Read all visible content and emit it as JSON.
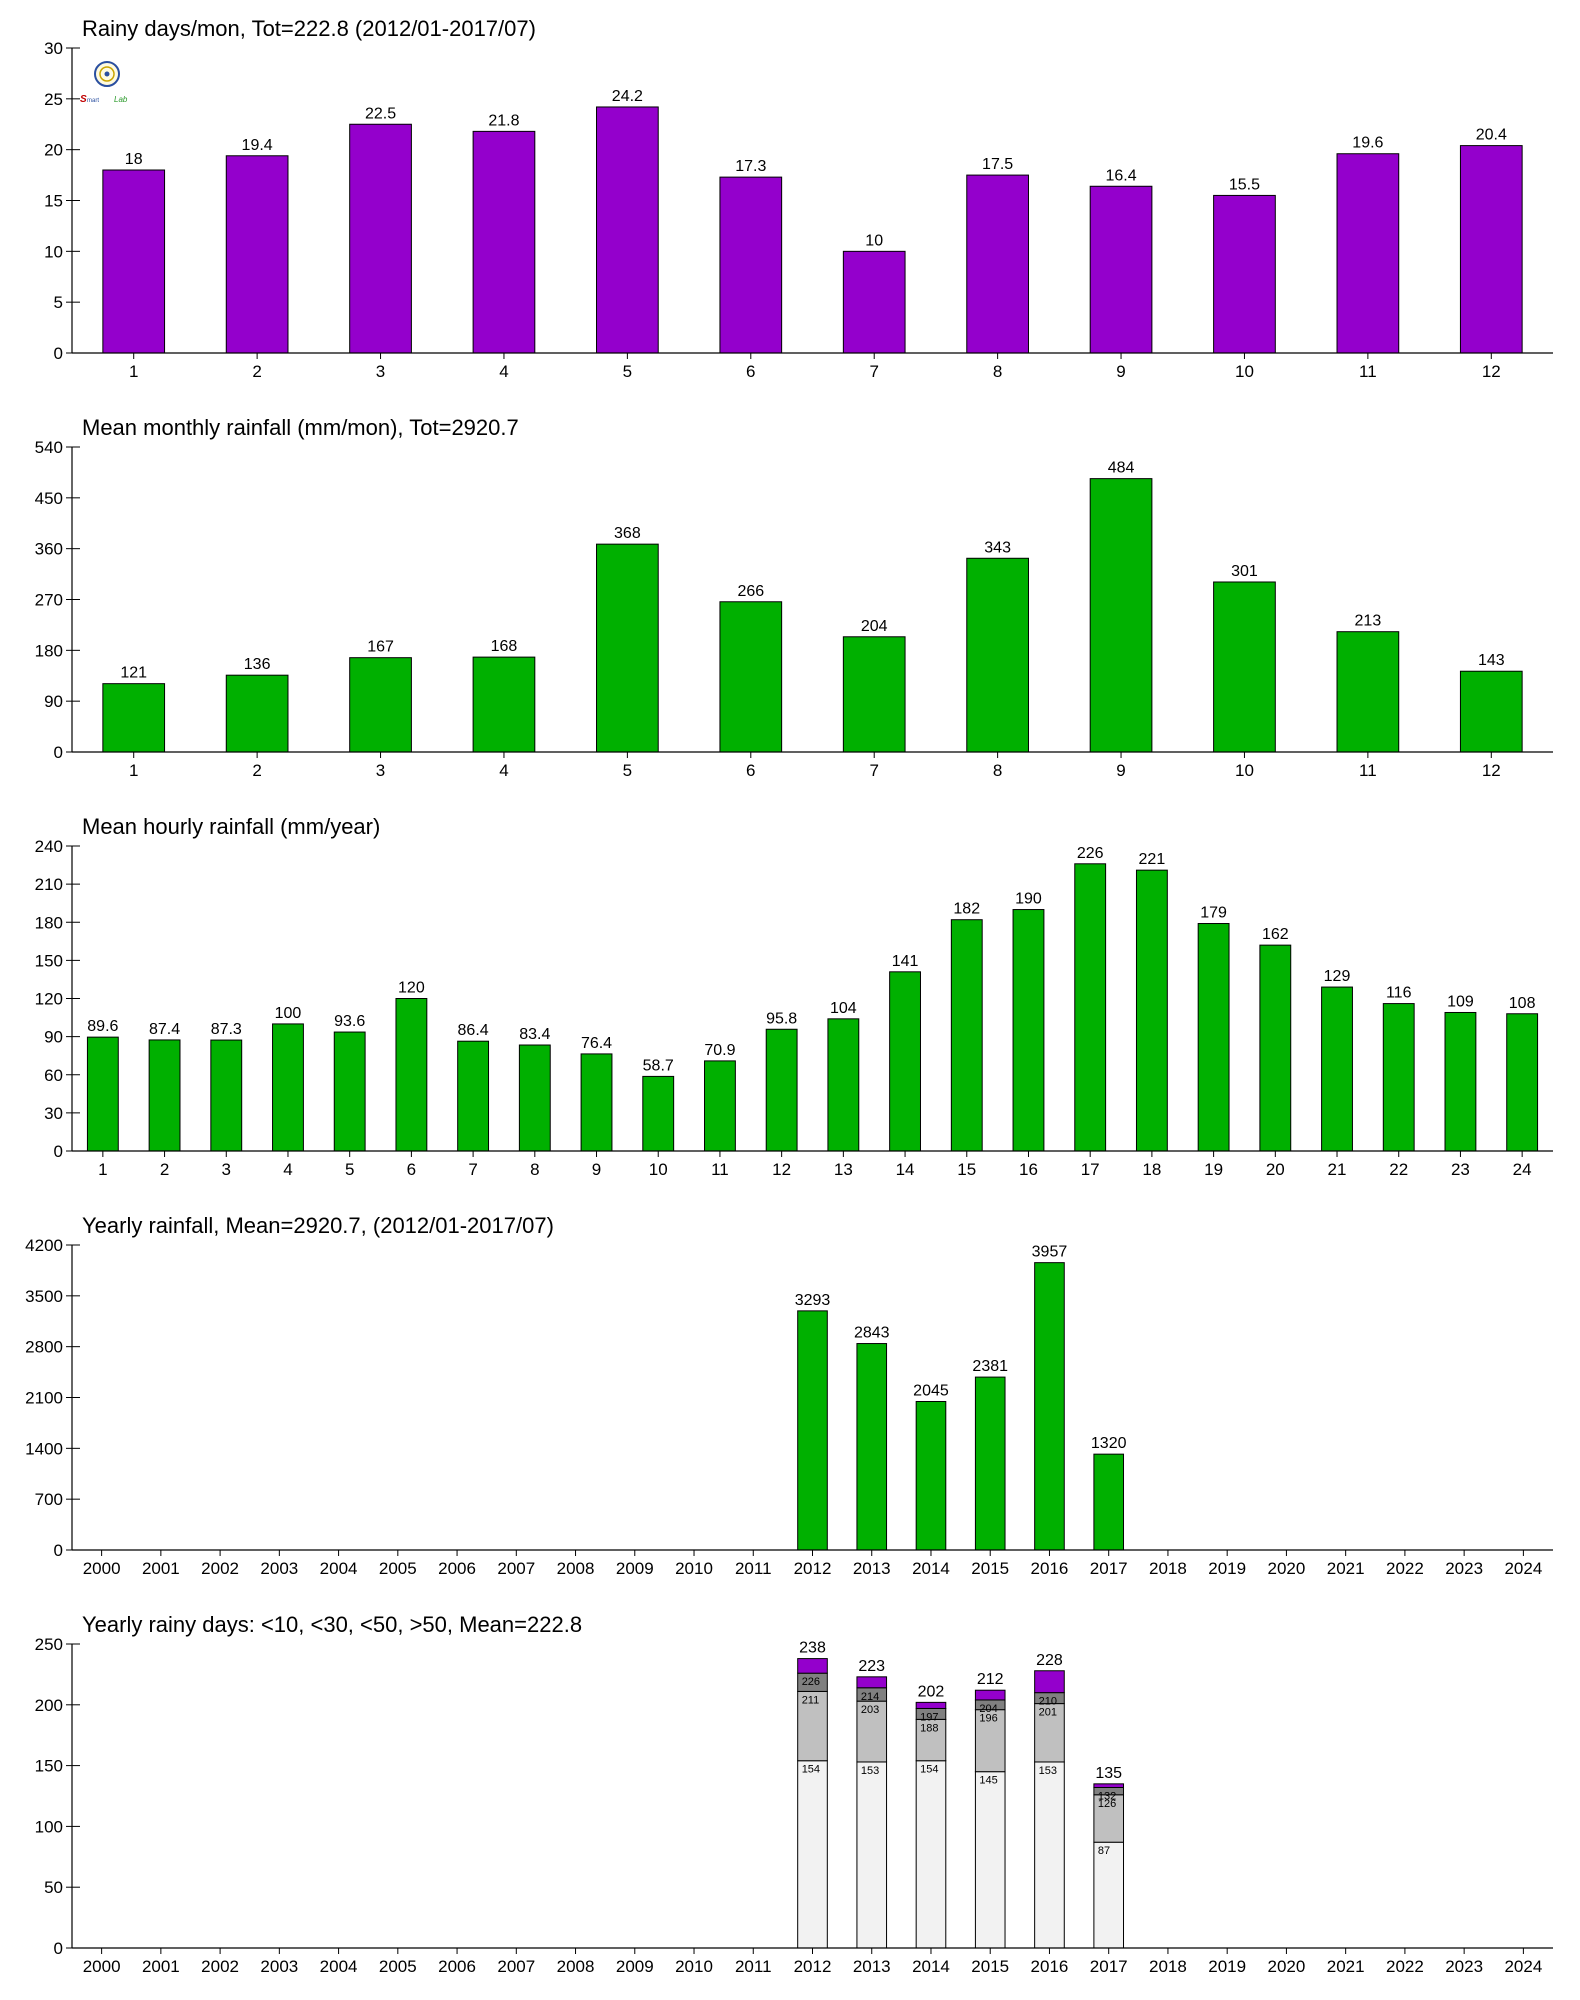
{
  "colors": {
    "purple": "#9400cc",
    "green": "#00b000",
    "gray": "#c0c0c0",
    "darkgray": "#808080",
    "lightgray": "#f2f2f2",
    "axis": "#000000"
  },
  "logo": {
    "text": "Smart Lab"
  },
  "chart_data": [
    {
      "type": "bar",
      "title": "Rainy days/mon, Tot=222.8 (2012/01-2017/07)",
      "categories": [
        "1",
        "2",
        "3",
        "4",
        "5",
        "6",
        "7",
        "8",
        "9",
        "10",
        "11",
        "12"
      ],
      "values": [
        18,
        19.4,
        22.5,
        21.8,
        24.2,
        17.3,
        10,
        17.5,
        16.4,
        15.5,
        19.6,
        20.4
      ],
      "labels": [
        "18",
        "19.4",
        "22.5",
        "21.8",
        "24.2",
        "17.3",
        "10",
        "17.5",
        "16.4",
        "15.5",
        "19.6",
        "20.4"
      ],
      "ylim": [
        0,
        30
      ],
      "yticks": [
        0,
        5,
        10,
        15,
        20,
        25,
        30
      ],
      "color": "#9400cc",
      "xlabel": "",
      "ylabel": "",
      "grid": false
    },
    {
      "type": "bar",
      "title": "Mean monthly rainfall (mm/mon), Tot=2920.7",
      "categories": [
        "1",
        "2",
        "3",
        "4",
        "5",
        "6",
        "7",
        "8",
        "9",
        "10",
        "11",
        "12"
      ],
      "values": [
        121,
        136,
        167,
        168,
        368,
        266,
        204,
        343,
        484,
        301,
        213,
        143
      ],
      "labels": [
        "121",
        "136",
        "167",
        "168",
        "368",
        "266",
        "204",
        "343",
        "484",
        "301",
        "213",
        "143"
      ],
      "ylim": [
        0,
        540
      ],
      "yticks": [
        0,
        90,
        180,
        270,
        360,
        450,
        540
      ],
      "color": "#00b000",
      "xlabel": "",
      "ylabel": "",
      "grid": false
    },
    {
      "type": "bar",
      "title": "Mean hourly rainfall (mm/year)",
      "categories": [
        "1",
        "2",
        "3",
        "4",
        "5",
        "6",
        "7",
        "8",
        "9",
        "10",
        "11",
        "12",
        "13",
        "14",
        "15",
        "16",
        "17",
        "18",
        "19",
        "20",
        "21",
        "22",
        "23",
        "24"
      ],
      "values": [
        89.6,
        87.4,
        87.3,
        100,
        93.6,
        120,
        86.4,
        83.4,
        76.4,
        58.7,
        70.9,
        95.8,
        104,
        141,
        182,
        190,
        226,
        221,
        179,
        162,
        129,
        116,
        109,
        108
      ],
      "labels": [
        "89.6",
        "87.4",
        "87.3",
        "100",
        "93.6",
        "120",
        "86.4",
        "83.4",
        "76.4",
        "58.7",
        "70.9",
        "95.8",
        "104",
        "141",
        "182",
        "190",
        "226",
        "221",
        "179",
        "162",
        "129",
        "116",
        "109",
        "108"
      ],
      "ylim": [
        0,
        240
      ],
      "yticks": [
        0,
        30,
        60,
        90,
        120,
        150,
        180,
        210,
        240
      ],
      "color": "#00b000",
      "xlabel": "",
      "ylabel": "",
      "grid": false
    },
    {
      "type": "bar",
      "title": "Yearly rainfall, Mean=2920.7, (2012/01-2017/07)",
      "categories": [
        "2000",
        "2001",
        "2002",
        "2003",
        "2004",
        "2005",
        "2006",
        "2007",
        "2008",
        "2009",
        "2010",
        "2011",
        "2012",
        "2013",
        "2014",
        "2015",
        "2016",
        "2017",
        "2018",
        "2019",
        "2020",
        "2021",
        "2022",
        "2023",
        "2024"
      ],
      "values": [
        null,
        null,
        null,
        null,
        null,
        null,
        null,
        null,
        null,
        null,
        null,
        null,
        3293,
        2843,
        2045,
        2381,
        3957,
        1320,
        null,
        null,
        null,
        null,
        null,
        null,
        null
      ],
      "labels": [
        "",
        "",
        "",
        "",
        "",
        "",
        "",
        "",
        "",
        "",
        "",
        "",
        "3293",
        "2843",
        "2045",
        "2381",
        "3957",
        "1320",
        "",
        "",
        "",
        "",
        "",
        "",
        ""
      ],
      "ylim": [
        0,
        4200
      ],
      "yticks": [
        0,
        700,
        1400,
        2100,
        2800,
        3500,
        4200
      ],
      "color": "#00b000",
      "xlabel": "",
      "ylabel": "",
      "grid": false
    },
    {
      "type": "bar",
      "stacked": true,
      "title": "Yearly rainy days: <10, <30, <50, >50, Mean=222.8",
      "categories": [
        "2000",
        "2001",
        "2002",
        "2003",
        "2004",
        "2005",
        "2006",
        "2007",
        "2008",
        "2009",
        "2010",
        "2011",
        "2012",
        "2013",
        "2014",
        "2015",
        "2016",
        "2017",
        "2018",
        "2019",
        "2020",
        "2021",
        "2022",
        "2023",
        "2024"
      ],
      "ylim": [
        0,
        250
      ],
      "yticks": [
        0,
        50,
        100,
        150,
        200,
        250
      ],
      "xlabel": "",
      "ylabel": "",
      "grid": false,
      "stacks": [
        {
          "category": "2012",
          "cumulative": [
            154,
            211,
            226,
            238
          ],
          "labels": [
            "154",
            "211",
            "226"
          ],
          "total_label": "238"
        },
        {
          "category": "2013",
          "cumulative": [
            153,
            203,
            214,
            223
          ],
          "labels": [
            "153",
            "203",
            "214"
          ],
          "total_label": "223"
        },
        {
          "category": "2014",
          "cumulative": [
            154,
            188,
            197,
            202
          ],
          "labels": [
            "154",
            "188",
            "197"
          ],
          "total_label": "202"
        },
        {
          "category": "2015",
          "cumulative": [
            145,
            196,
            204,
            212
          ],
          "labels": [
            "145",
            "196",
            "204"
          ],
          "total_label": "212"
        },
        {
          "category": "2016",
          "cumulative": [
            153,
            201,
            210,
            228
          ],
          "labels": [
            "153",
            "201",
            "210"
          ],
          "total_label": "228"
        },
        {
          "category": "2017",
          "cumulative": [
            87,
            126,
            132,
            135
          ],
          "labels": [
            "87",
            "126",
            "132"
          ],
          "total_label": "135"
        }
      ],
      "segment_colors": [
        "#f2f2f2",
        "#c0c0c0",
        "#808080",
        "#9400cc"
      ]
    }
  ]
}
